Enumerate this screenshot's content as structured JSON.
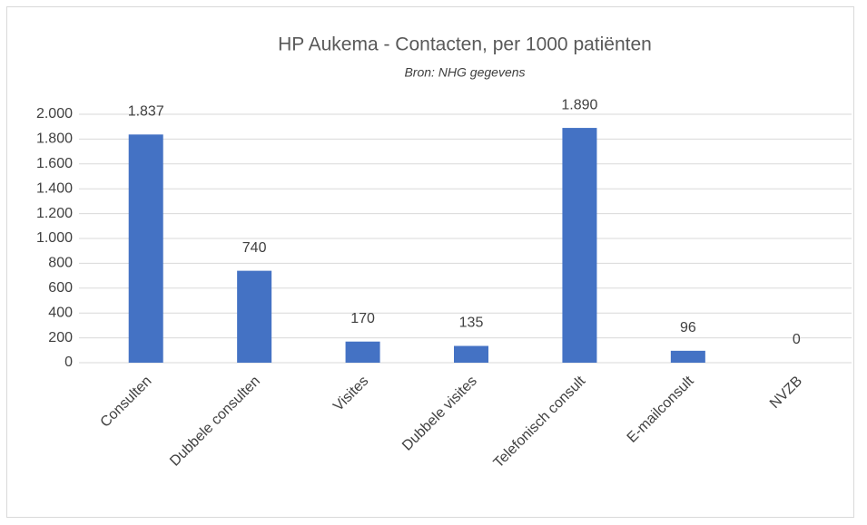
{
  "chart_data": {
    "type": "bar",
    "title": "HP Aukema - Contacten, per 1000 patiënten",
    "subtitle": "Bron: NHG gegevens",
    "categories": [
      "Consulten",
      "Dubbele consulten",
      "Visites",
      "Dubbele visites",
      "Telefonisch consult",
      "E-mailconsult",
      "NVZB"
    ],
    "values": [
      1837,
      740,
      170,
      135,
      1890,
      96,
      0
    ],
    "value_labels": [
      "1.837",
      "740",
      "170",
      "135",
      "1.890",
      "96",
      "0"
    ],
    "color": "#4472c4",
    "ylim": [
      0,
      2000
    ],
    "yticks": [
      0,
      200,
      400,
      600,
      800,
      {
        "value": 1000,
        "label": "1.000"
      },
      {
        "value": 1200,
        "label": "1.200"
      },
      {
        "value": 1400,
        "label": "1.400"
      },
      {
        "value": 1600,
        "label": "1.600"
      },
      {
        "value": 1800,
        "label": "1.800"
      },
      {
        "value": 2000,
        "label": "2.000"
      }
    ],
    "grid": true
  }
}
